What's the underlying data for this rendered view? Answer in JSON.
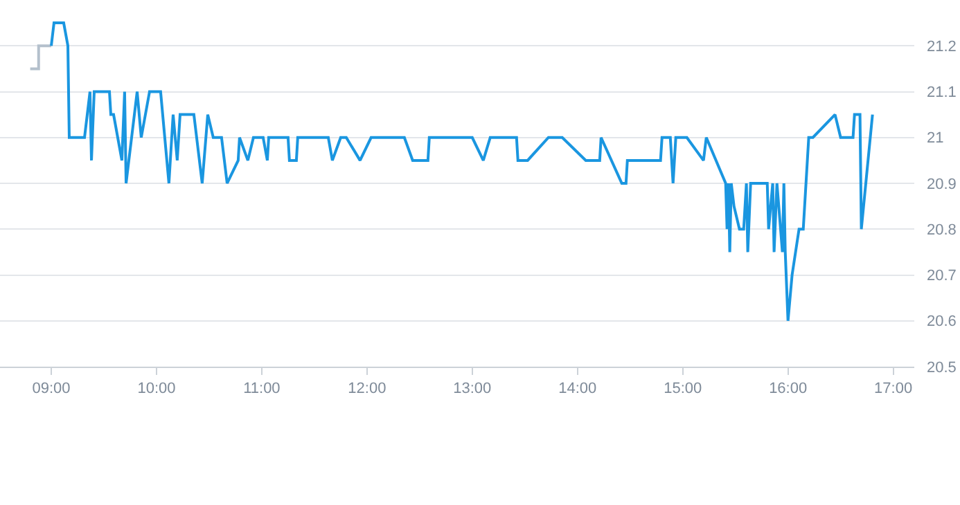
{
  "chart_data": {
    "type": "line",
    "series": [
      {
        "color": "#b4c0cc",
        "x": [
          8.8,
          8.88,
          8.88,
          9.0
        ],
        "values": [
          21.15,
          21.15,
          21.2,
          21.2
        ]
      },
      {
        "color": "#1a96e0",
        "x": [
          9.0,
          9.026,
          9.118,
          9.158,
          9.171,
          9.316,
          9.368,
          9.382,
          9.408,
          9.553,
          9.566,
          9.592,
          9.671,
          9.697,
          9.711,
          9.816,
          9.855,
          9.934,
          10.039,
          10.118,
          10.158,
          10.197,
          10.224,
          10.355,
          10.434,
          10.487,
          10.539,
          10.618,
          10.671,
          10.776,
          10.789,
          10.868,
          10.921,
          11.013,
          11.053,
          11.066,
          11.25,
          11.263,
          11.329,
          11.342,
          11.632,
          11.671,
          11.75,
          11.803,
          11.934,
          12.039,
          12.355,
          12.434,
          12.579,
          12.592,
          13.0,
          13.105,
          13.171,
          13.421,
          13.434,
          13.526,
          13.724,
          13.855,
          14.079,
          14.211,
          14.224,
          14.421,
          14.461,
          14.474,
          14.789,
          14.803,
          14.882,
          14.908,
          14.934,
          15.039,
          15.197,
          15.224,
          15.408,
          15.421,
          15.434,
          15.447,
          15.461,
          15.487,
          15.539,
          15.579,
          15.605,
          15.618,
          15.645,
          15.803,
          15.816,
          15.855,
          15.868,
          15.895,
          15.947,
          15.961,
          15.974,
          16.0,
          16.039,
          16.105,
          16.145,
          16.197,
          16.237,
          16.447,
          16.5,
          16.618,
          16.632,
          16.684,
          16.697,
          16.803
        ],
        "values": [
          21.2,
          21.25,
          21.25,
          21.2,
          21.0,
          21.0,
          21.1,
          20.95,
          21.1,
          21.1,
          21.05,
          21.05,
          20.95,
          21.1,
          20.9,
          21.1,
          21.0,
          21.1,
          21.1,
          20.9,
          21.05,
          20.95,
          21.05,
          21.05,
          20.9,
          21.05,
          21.0,
          21.0,
          20.9,
          20.95,
          21.0,
          20.95,
          21.0,
          21.0,
          20.95,
          21.0,
          21.0,
          20.95,
          20.95,
          21.0,
          21.0,
          20.95,
          21.0,
          21.0,
          20.95,
          21.0,
          21.0,
          20.95,
          20.95,
          21.0,
          21.0,
          20.95,
          21.0,
          21.0,
          20.95,
          20.95,
          21.0,
          21.0,
          20.95,
          20.95,
          21.0,
          20.9,
          20.9,
          20.95,
          20.95,
          21.0,
          21.0,
          20.9,
          21.0,
          21.0,
          20.95,
          21.0,
          20.9,
          20.8,
          20.9,
          20.75,
          20.9,
          20.85,
          20.8,
          20.8,
          20.9,
          20.75,
          20.9,
          20.9,
          20.8,
          20.9,
          20.75,
          20.9,
          20.75,
          20.9,
          20.75,
          20.6,
          20.7,
          20.8,
          20.8,
          21.0,
          21.0,
          21.05,
          21.0,
          21.0,
          21.05,
          21.05,
          20.8,
          21.05
        ]
      }
    ],
    "xlim": [
      8.513,
      17.2
    ],
    "xticks": [
      {
        "value": 9,
        "label": "09:00"
      },
      {
        "value": 10,
        "label": "10:00"
      },
      {
        "value": 11,
        "label": "11:00"
      },
      {
        "value": 12,
        "label": "12:00"
      },
      {
        "value": 13,
        "label": "13:00"
      },
      {
        "value": 14,
        "label": "14:00"
      },
      {
        "value": 15,
        "label": "15:00"
      },
      {
        "value": 16,
        "label": "16:00"
      },
      {
        "value": 17,
        "label": "17:00"
      }
    ],
    "ylim": [
      20.5,
      21.3
    ],
    "yticks": [
      20.5,
      20.6,
      20.7,
      20.8,
      20.9,
      21,
      21.1,
      21.2
    ],
    "grid": "y",
    "marker": "none",
    "line_style": "solid"
  }
}
